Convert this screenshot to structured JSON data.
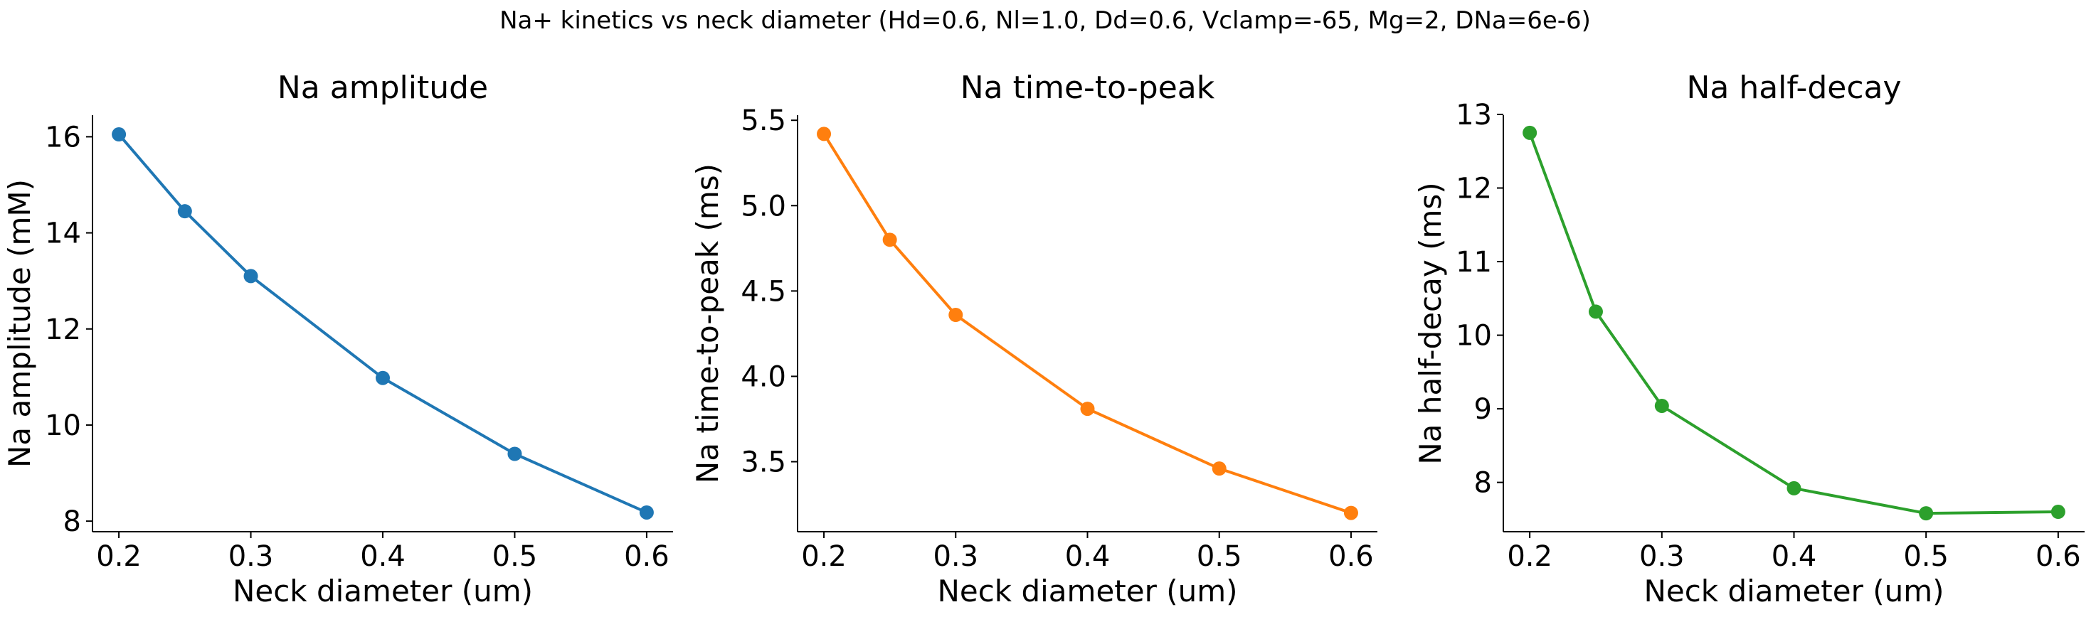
{
  "figure": {
    "title": "Na+ kinetics vs neck diameter (Hd=0.6, Nl=1.0, Dd=0.6, Vclamp=-65, Mg=2, DNa=6e-6)"
  },
  "chart_data": [
    {
      "type": "line",
      "title": "Na amplitude",
      "xlabel": "Neck diameter (um)",
      "ylabel": "Na amplitude (mM)",
      "x": [
        0.2,
        0.25,
        0.3,
        0.4,
        0.5,
        0.6
      ],
      "y": [
        16.05,
        14.45,
        13.1,
        10.98,
        9.4,
        8.18
      ],
      "xlim": [
        0.18,
        0.62
      ],
      "ylim": [
        7.78,
        16.45
      ],
      "xticks": [
        0.2,
        0.3,
        0.4,
        0.5,
        0.6
      ],
      "yticks": [
        8,
        10,
        12,
        14,
        16
      ],
      "xtick_labels": [
        "0.2",
        "0.3",
        "0.4",
        "0.5",
        "0.6"
      ],
      "ytick_labels": [
        "8",
        "10",
        "12",
        "14",
        "16"
      ],
      "color": "#1f77b4",
      "grid": false,
      "marker": "circle"
    },
    {
      "type": "line",
      "title": "Na time-to-peak",
      "xlabel": "Neck diameter (um)",
      "ylabel": "Na time-to-peak (ms)",
      "x": [
        0.2,
        0.25,
        0.3,
        0.4,
        0.5,
        0.6
      ],
      "y": [
        5.42,
        4.8,
        4.36,
        3.81,
        3.46,
        3.2
      ],
      "xlim": [
        0.18,
        0.62
      ],
      "ylim": [
        3.09,
        5.53
      ],
      "xticks": [
        0.2,
        0.3,
        0.4,
        0.5,
        0.6
      ],
      "yticks": [
        3.5,
        4.0,
        4.5,
        5.0,
        5.5
      ],
      "xtick_labels": [
        "0.2",
        "0.3",
        "0.4",
        "0.5",
        "0.6"
      ],
      "ytick_labels": [
        "3.5",
        "4.0",
        "4.5",
        "5.0",
        "5.5"
      ],
      "color": "#ff7f0e",
      "grid": false,
      "marker": "circle"
    },
    {
      "type": "line",
      "title": "Na half-decay",
      "xlabel": "Neck diameter (um)",
      "ylabel": "Na half-decay (ms)",
      "x": [
        0.2,
        0.25,
        0.3,
        0.4,
        0.5,
        0.6
      ],
      "y": [
        12.75,
        10.32,
        9.04,
        7.92,
        7.58,
        7.6
      ],
      "xlim": [
        0.18,
        0.62
      ],
      "ylim": [
        7.33,
        12.99
      ],
      "xticks": [
        0.2,
        0.3,
        0.4,
        0.5,
        0.6
      ],
      "yticks": [
        8,
        9,
        10,
        11,
        12,
        13
      ],
      "xtick_labels": [
        "0.2",
        "0.3",
        "0.4",
        "0.5",
        "0.6"
      ],
      "ytick_labels": [
        "8",
        "9",
        "10",
        "11",
        "12",
        "13"
      ],
      "color": "#2ca02c",
      "grid": false,
      "marker": "circle"
    }
  ]
}
